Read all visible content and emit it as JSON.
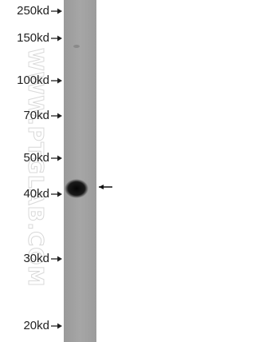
{
  "markers": [
    "250kd",
    "150kd",
    "100kd",
    "70kd",
    "50kd",
    "40kd",
    "30kd",
    "20kd"
  ],
  "watermark": "WWW.PTGLAB.COM"
}
